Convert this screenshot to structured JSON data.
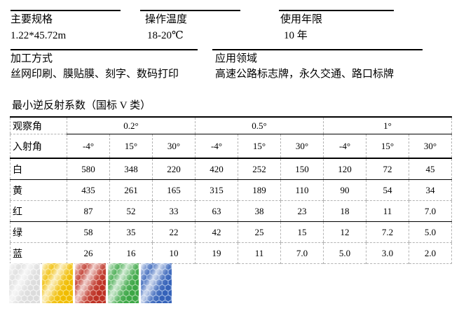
{
  "specs": [
    {
      "label": "主要规格",
      "value": "1.22*45.72m"
    },
    {
      "label": "操作温度",
      "value": "18-20℃"
    },
    {
      "label": "使用年限",
      "value": "10 年"
    }
  ],
  "sections": [
    {
      "label": "加工方式",
      "value": "丝网印刷、膜贴膜、刻字、数码打印"
    },
    {
      "label": "应用领域",
      "value": "高速公路标志牌，永久交通、路口标牌"
    }
  ],
  "table": {
    "title": "最小逆反射系数（国标 V 类）",
    "row_header_1": "观察角",
    "row_header_2": "入射角",
    "observation_angles": [
      "0.2°",
      "0.5°",
      "1°"
    ],
    "entrance_angles": [
      "-4°",
      "15°",
      "30°",
      "-4°",
      "15°",
      "30°",
      "-4°",
      "15°",
      "30°"
    ],
    "rows": [
      {
        "label": "白",
        "values": [
          "580",
          "348",
          "220",
          "420",
          "252",
          "150",
          "120",
          "72",
          "45"
        ]
      },
      {
        "label": "黄",
        "values": [
          "435",
          "261",
          "165",
          "315",
          "189",
          "110",
          "90",
          "54",
          "34"
        ]
      },
      {
        "label": "红",
        "values": [
          "87",
          "52",
          "33",
          "63",
          "38",
          "23",
          "18",
          "11",
          "7.0"
        ]
      },
      {
        "label": "绿",
        "values": [
          "58",
          "35",
          "22",
          "42",
          "25",
          "15",
          "12",
          "7.2",
          "5.0"
        ]
      },
      {
        "label": "蓝",
        "values": [
          "26",
          "16",
          "10",
          "19",
          "11",
          "7.0",
          "5.0",
          "3.0",
          "2.0"
        ]
      }
    ]
  },
  "swatches": [
    {
      "name": "white-silver",
      "base": "#e6e6e6",
      "hex_fill": "#dcdcdc",
      "hex_stroke": "#f5f5f5"
    },
    {
      "name": "yellow",
      "base": "#f5c60c",
      "hex_fill": "#f0bc00",
      "hex_stroke": "#fbe175"
    },
    {
      "name": "red",
      "base": "#c53a2b",
      "hex_fill": "#bd3124",
      "hex_stroke": "#e4998c"
    },
    {
      "name": "green",
      "base": "#47ae50",
      "hex_fill": "#3ca746",
      "hex_stroke": "#a3d7a3"
    },
    {
      "name": "blue",
      "base": "#3f6dc1",
      "hex_fill": "#3562b9",
      "hex_stroke": "#9cb6e3"
    }
  ]
}
